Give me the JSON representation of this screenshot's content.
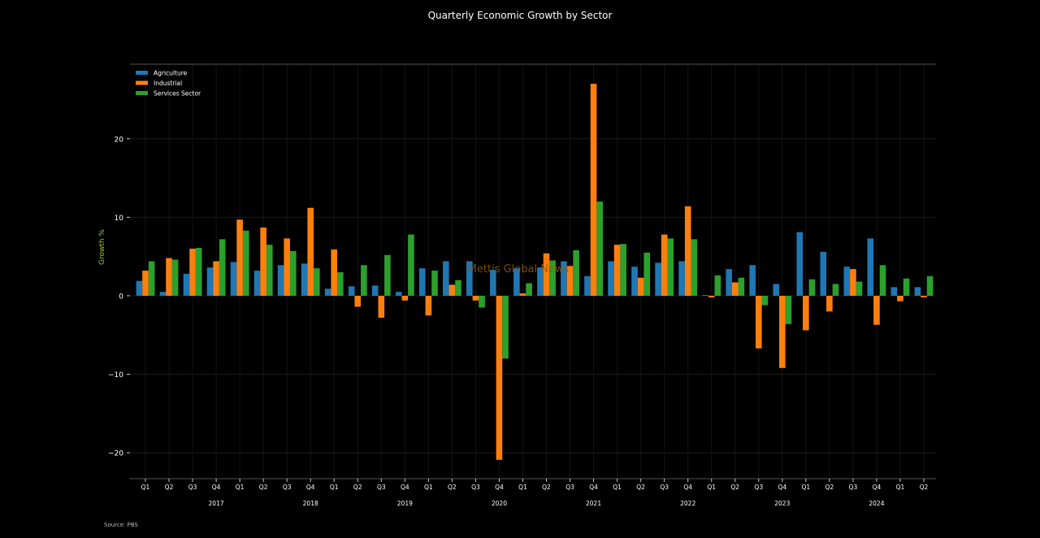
{
  "chart_data": {
    "type": "bar",
    "title": "Quarterly Economic Growth by Sector",
    "xlabel": "",
    "ylabel": "Growth %",
    "ylim": [
      -23.3,
      29.5
    ],
    "yticks": [
      -20,
      -10,
      0,
      10,
      20
    ],
    "grid": true,
    "legend_position": "top-left",
    "watermark": "Mettis Global News",
    "source": "Source: PBS",
    "categories": [
      "Q1",
      "Q2",
      "Q3",
      "Q4",
      "Q1",
      "Q2",
      "Q3",
      "Q4",
      "Q1",
      "Q2",
      "Q3",
      "Q4",
      "Q1",
      "Q2",
      "Q3",
      "Q4",
      "Q1",
      "Q2",
      "Q3",
      "Q4",
      "Q1",
      "Q2",
      "Q3",
      "Q4",
      "Q1",
      "Q2",
      "Q3",
      "Q4",
      "Q1",
      "Q2",
      "Q3",
      "Q4",
      "Q1",
      "Q2"
    ],
    "year_labels": [
      {
        "label": "2017",
        "index": 3
      },
      {
        "label": "2018",
        "index": 7
      },
      {
        "label": "2019",
        "index": 11
      },
      {
        "label": "2020",
        "index": 15
      },
      {
        "label": "2021",
        "index": 19
      },
      {
        "label": "2022",
        "index": 23
      },
      {
        "label": "2023",
        "index": 27
      },
      {
        "label": "2024",
        "index": 31
      }
    ],
    "series": [
      {
        "name": "Agriculture",
        "color": "#1f77b4",
        "values": [
          1.9,
          0.5,
          2.8,
          3.6,
          4.3,
          3.2,
          3.9,
          4.1,
          0.9,
          1.2,
          1.3,
          0.5,
          3.5,
          4.4,
          4.4,
          3.3,
          3.5,
          3.6,
          4.4,
          2.5,
          4.4,
          3.7,
          4.2,
          4.4,
          0.1,
          3.4,
          3.9,
          1.5,
          8.1,
          5.6,
          3.7,
          7.3,
          1.1,
          1.1
        ]
      },
      {
        "name": "Industrial",
        "color": "#ff7f0e",
        "values": [
          3.2,
          4.8,
          6.0,
          4.4,
          9.7,
          8.7,
          7.3,
          11.2,
          5.9,
          -1.4,
          -2.8,
          -0.6,
          -2.5,
          1.4,
          -0.6,
          -20.9,
          0.3,
          5.4,
          3.8,
          27.0,
          6.5,
          2.3,
          7.8,
          11.4,
          -0.2,
          1.7,
          -6.7,
          -9.2,
          -4.4,
          -2.0,
          3.4,
          -3.7,
          -0.7,
          -0.2
        ]
      },
      {
        "name": "Services Sector",
        "color": "#2ca02c",
        "values": [
          4.4,
          4.6,
          6.1,
          7.2,
          8.3,
          6.5,
          5.7,
          3.5,
          3.0,
          3.9,
          5.2,
          7.8,
          3.2,
          2.0,
          -1.5,
          -8.0,
          1.6,
          4.5,
          5.8,
          12.0,
          6.6,
          5.5,
          7.3,
          7.2,
          2.6,
          2.3,
          -1.2,
          -3.6,
          2.1,
          1.5,
          1.8,
          3.9,
          2.2,
          2.5
        ]
      }
    ]
  }
}
